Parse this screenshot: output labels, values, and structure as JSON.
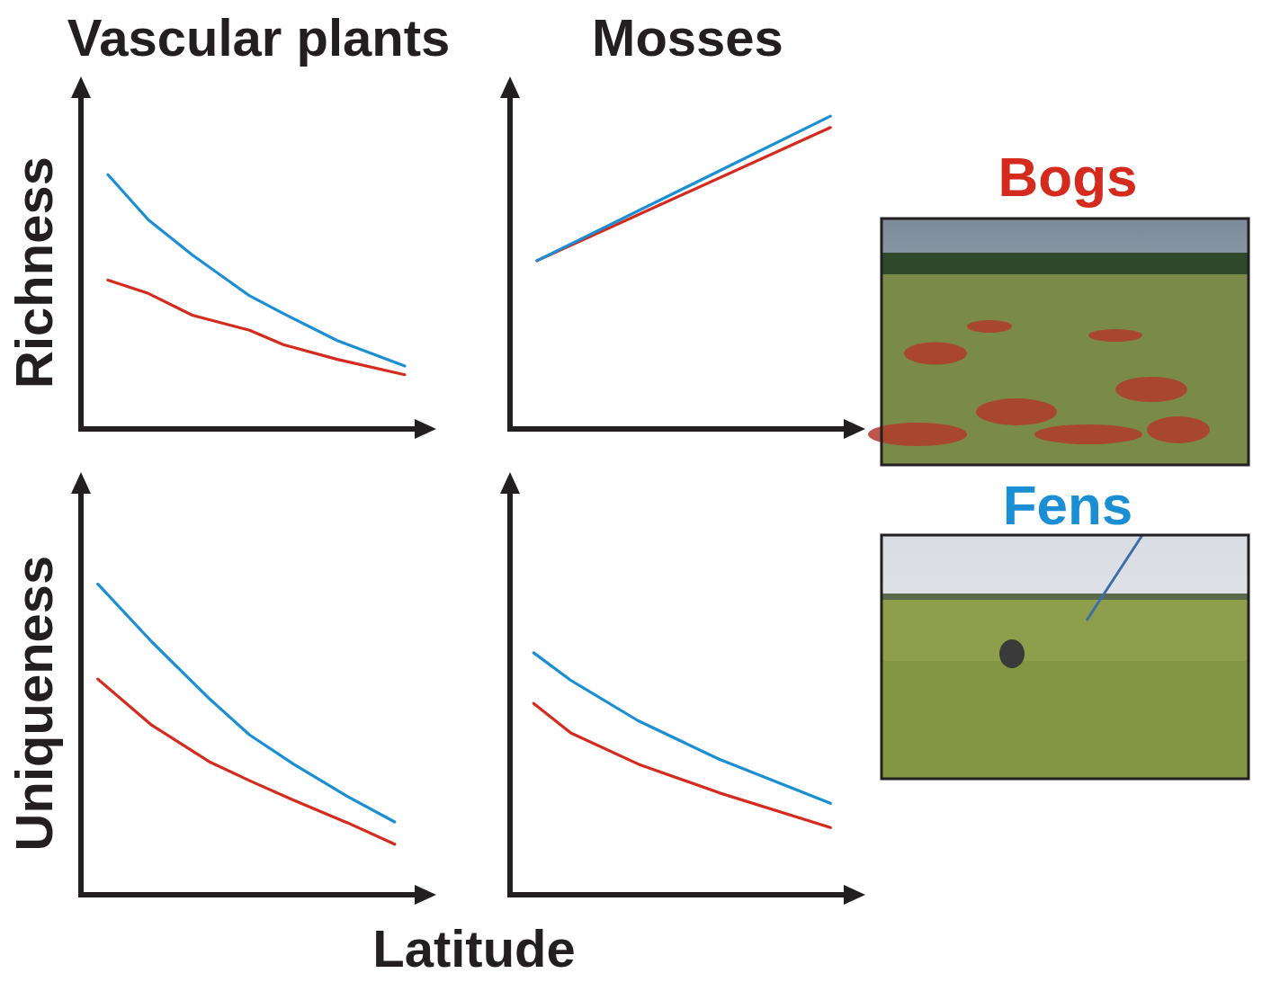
{
  "x_label": "Latitude",
  "chart_data": [
    {
      "type": "line",
      "title": "Vascular plants",
      "y_label": "Richness",
      "tick_labels": false,
      "xlim": [
        0,
        100
      ],
      "ylim": [
        0,
        100
      ],
      "x": [
        8,
        20,
        33,
        50,
        60,
        76,
        96
      ],
      "series": [
        {
          "name": "Bogs",
          "color": "#d42b1e",
          "values": [
            44.5,
            40.5,
            34,
            29.5,
            25.2,
            20.8,
            16.2
          ]
        },
        {
          "name": "Fens",
          "color": "#1b8fd4",
          "values": [
            76,
            62.5,
            52,
            39.8,
            34.5,
            26.4,
            18.8
          ]
        }
      ]
    },
    {
      "type": "line",
      "title": "Mosses",
      "tick_labels": false,
      "xlim": [
        0,
        100
      ],
      "ylim": [
        0,
        100
      ],
      "x": [
        8,
        95
      ],
      "series": [
        {
          "name": "Bogs",
          "color": "#d42b1e",
          "values": [
            50.3,
            90.1
          ]
        },
        {
          "name": "Fens",
          "color": "#1b8fd4",
          "values": [
            50.3,
            93.5
          ]
        }
      ]
    },
    {
      "type": "line",
      "y_label": "Uniqueness",
      "tick_labels": false,
      "xlim": [
        0,
        100
      ],
      "ylim": [
        0,
        100
      ],
      "x": [
        5,
        21,
        38,
        50,
        63,
        79,
        93
      ],
      "series": [
        {
          "name": "Bogs",
          "color": "#d42b1e",
          "values": [
            53.3,
            41.9,
            32.9,
            28.2,
            23.4,
            17.8,
            12.5
          ]
        },
        {
          "name": "Fens",
          "color": "#1b8fd4",
          "values": [
            76.8,
            62.5,
            48.5,
            39.5,
            32.3,
            24.3,
            18
          ]
        }
      ]
    },
    {
      "type": "line",
      "tick_labels": false,
      "xlim": [
        0,
        100
      ],
      "ylim": [
        0,
        100
      ],
      "x": [
        7,
        18,
        38,
        62,
        95
      ],
      "series": [
        {
          "name": "Bogs",
          "color": "#d42b1e",
          "values": [
            47.3,
            40,
            32.3,
            25.2,
            16.6
          ]
        },
        {
          "name": "Fens",
          "color": "#1b8fd4",
          "values": [
            59.8,
            53,
            43,
            33.5,
            22.6
          ]
        }
      ]
    }
  ]
}
